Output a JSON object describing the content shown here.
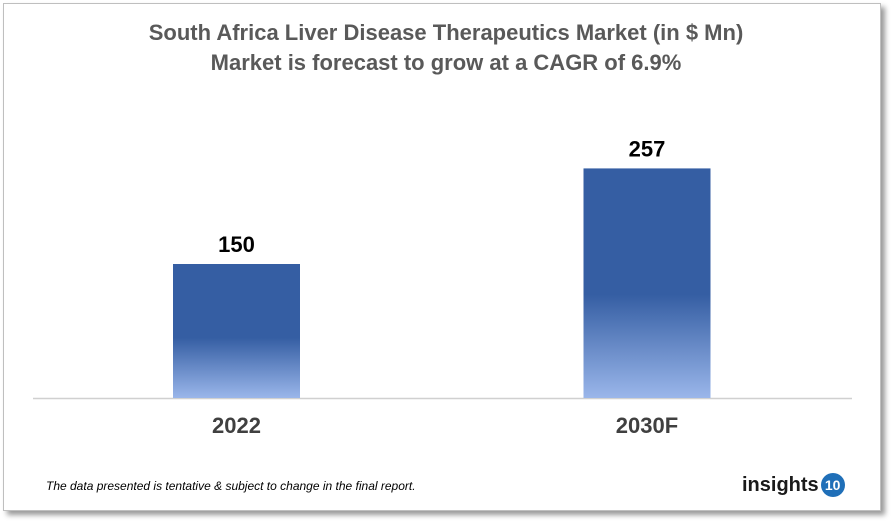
{
  "chart_data": {
    "type": "bar",
    "title": "South Africa Liver Disease Therapeutics Market (in $ Mn)",
    "subtitle": "Market is forecast to grow at a CAGR of 6.9%",
    "categories": [
      "2022",
      "2030F"
    ],
    "values": [
      150,
      257
    ],
    "data_labels": [
      "150",
      "257"
    ],
    "xlabel": "",
    "ylabel": "",
    "ylim": [
      0,
      300
    ],
    "grid": false,
    "bar_color_top": "#355ea3",
    "bar_color_bottom": "#9ab6ea"
  },
  "footnote": "The data presented is tentative & subject to change in the final report.",
  "logo": {
    "text": "insights",
    "badge": "10"
  }
}
